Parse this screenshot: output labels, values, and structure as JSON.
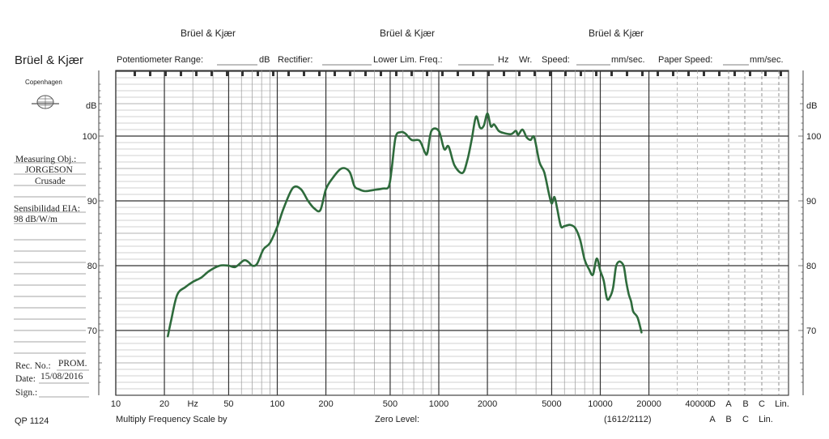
{
  "brand": {
    "name": "Brüel & Kjær",
    "city": "Copenhagen"
  },
  "top_brands": [
    "Brüel & Kjær",
    "Brüel & Kjær",
    "Brüel & Kjær"
  ],
  "header": {
    "potentiometer_range": "Potentiometer Range:",
    "db_unit": "dB",
    "rectifier": "Rectifier:",
    "lower_lim_freq": "Lower Lim. Freq.:",
    "hz_unit": "Hz",
    "wr": "Wr.",
    "speed": "Speed:",
    "speed_unit": "mm/sec.",
    "paper_speed": "Paper Speed:",
    "paper_speed_unit": "mm/sec."
  },
  "sidebar": {
    "measuring_obj_label": "Measuring Obj.:",
    "measuring_obj_value1": "JORGESON",
    "measuring_obj_value2": "Crusade",
    "sensitivity_label": "Sensibilidad EIA:",
    "sensitivity_value": "98 dB/W/m",
    "rec_no_label": "Rec. No.:",
    "rec_no_value": "PROM.",
    "date_label": "Date:",
    "date_value": "15/08/2016",
    "sign_label": "Sign.:"
  },
  "footer": {
    "form_code": "QP 1124",
    "multiply": "Multiply Frequency Scale by",
    "zero_level": "Zero Level:",
    "code": "(1612/2112)"
  },
  "chart_data": {
    "type": "line",
    "title": "",
    "xlabel": "Hz",
    "ylabel": "dB",
    "x_scale": "log",
    "xlim": [
      10,
      40000
    ],
    "ylim": [
      60,
      110
    ],
    "grid": true,
    "x_tick_labels": [
      "10",
      "20",
      "Hz",
      "50",
      "100",
      "200",
      "500",
      "1000",
      "2000",
      "5000",
      "10000",
      "20000",
      "40000"
    ],
    "x_tick_values": [
      10,
      20,
      30,
      50,
      100,
      200,
      500,
      1000,
      2000,
      5000,
      10000,
      20000,
      40000
    ],
    "y_tick_labels": [
      "100",
      "90",
      "80",
      "70"
    ],
    "y_tick_values": [
      100,
      90,
      80,
      70
    ],
    "extra_labels_row1": [
      "D",
      "A",
      "B",
      "C",
      "Lin."
    ],
    "extra_labels_row2": [
      "A",
      "B",
      "C",
      "Lin."
    ],
    "line_color": "#2e6b3c",
    "series": [
      {
        "x": [
          21,
          22,
          24,
          27,
          30,
          34,
          38,
          44,
          50,
          55,
          62,
          66,
          70,
          75,
          82,
          90,
          100,
          110,
          125,
          140,
          155,
          170,
          185,
          200,
          220,
          250,
          280,
          300,
          320,
          350,
          400,
          450,
          490,
          510,
          540,
          580,
          620,
          680,
          760,
          820,
          850,
          900,
          1000,
          1080,
          1150,
          1250,
          1400,
          1500,
          1600,
          1700,
          1800,
          1900,
          2000,
          2100,
          2200,
          2350,
          2500,
          2800,
          3000,
          3100,
          3300,
          3500,
          3700,
          3900,
          4200,
          4500,
          4800,
          5000,
          5200,
          5400,
          5700,
          6000,
          6500,
          7000,
          7500,
          8000,
          8500,
          9000,
          9500,
          10000,
          10500,
          11000,
          11500,
          12000,
          12500,
          13000,
          13500,
          14000,
          14500,
          15000,
          15500,
          16000,
          17000,
          18000
        ],
        "y": [
          69.1,
          71.5,
          75.5,
          76.7,
          77.5,
          78.2,
          79.2,
          80.0,
          80.0,
          79.8,
          80.8,
          80.6,
          80.0,
          80.3,
          82.5,
          83.5,
          86.0,
          89.0,
          92.0,
          91.8,
          90.0,
          88.8,
          88.6,
          91.8,
          93.5,
          95.0,
          94.5,
          92.3,
          91.8,
          91.5,
          91.7,
          91.9,
          92.2,
          94.8,
          99.8,
          100.6,
          100.4,
          99.4,
          99.3,
          97.5,
          97.4,
          100.8,
          100.8,
          98.0,
          98.4,
          95.5,
          94.3,
          96.2,
          99.5,
          103.0,
          101.3,
          101.6,
          103.5,
          101.5,
          101.8,
          100.8,
          100.5,
          100.3,
          100.8,
          100.2,
          101.0,
          99.8,
          99.4,
          99.8,
          96.0,
          94.4,
          91.2,
          89.6,
          90.6,
          88.9,
          86.1,
          86.1,
          86.3,
          85.8,
          84.0,
          80.9,
          79.5,
          78.6,
          81.1,
          79.2,
          77.7,
          74.9,
          75.2,
          76.6,
          79.8,
          80.6,
          80.5,
          79.8,
          77.4,
          75.6,
          74.5,
          72.9,
          72.0,
          69.7
        ]
      }
    ]
  }
}
